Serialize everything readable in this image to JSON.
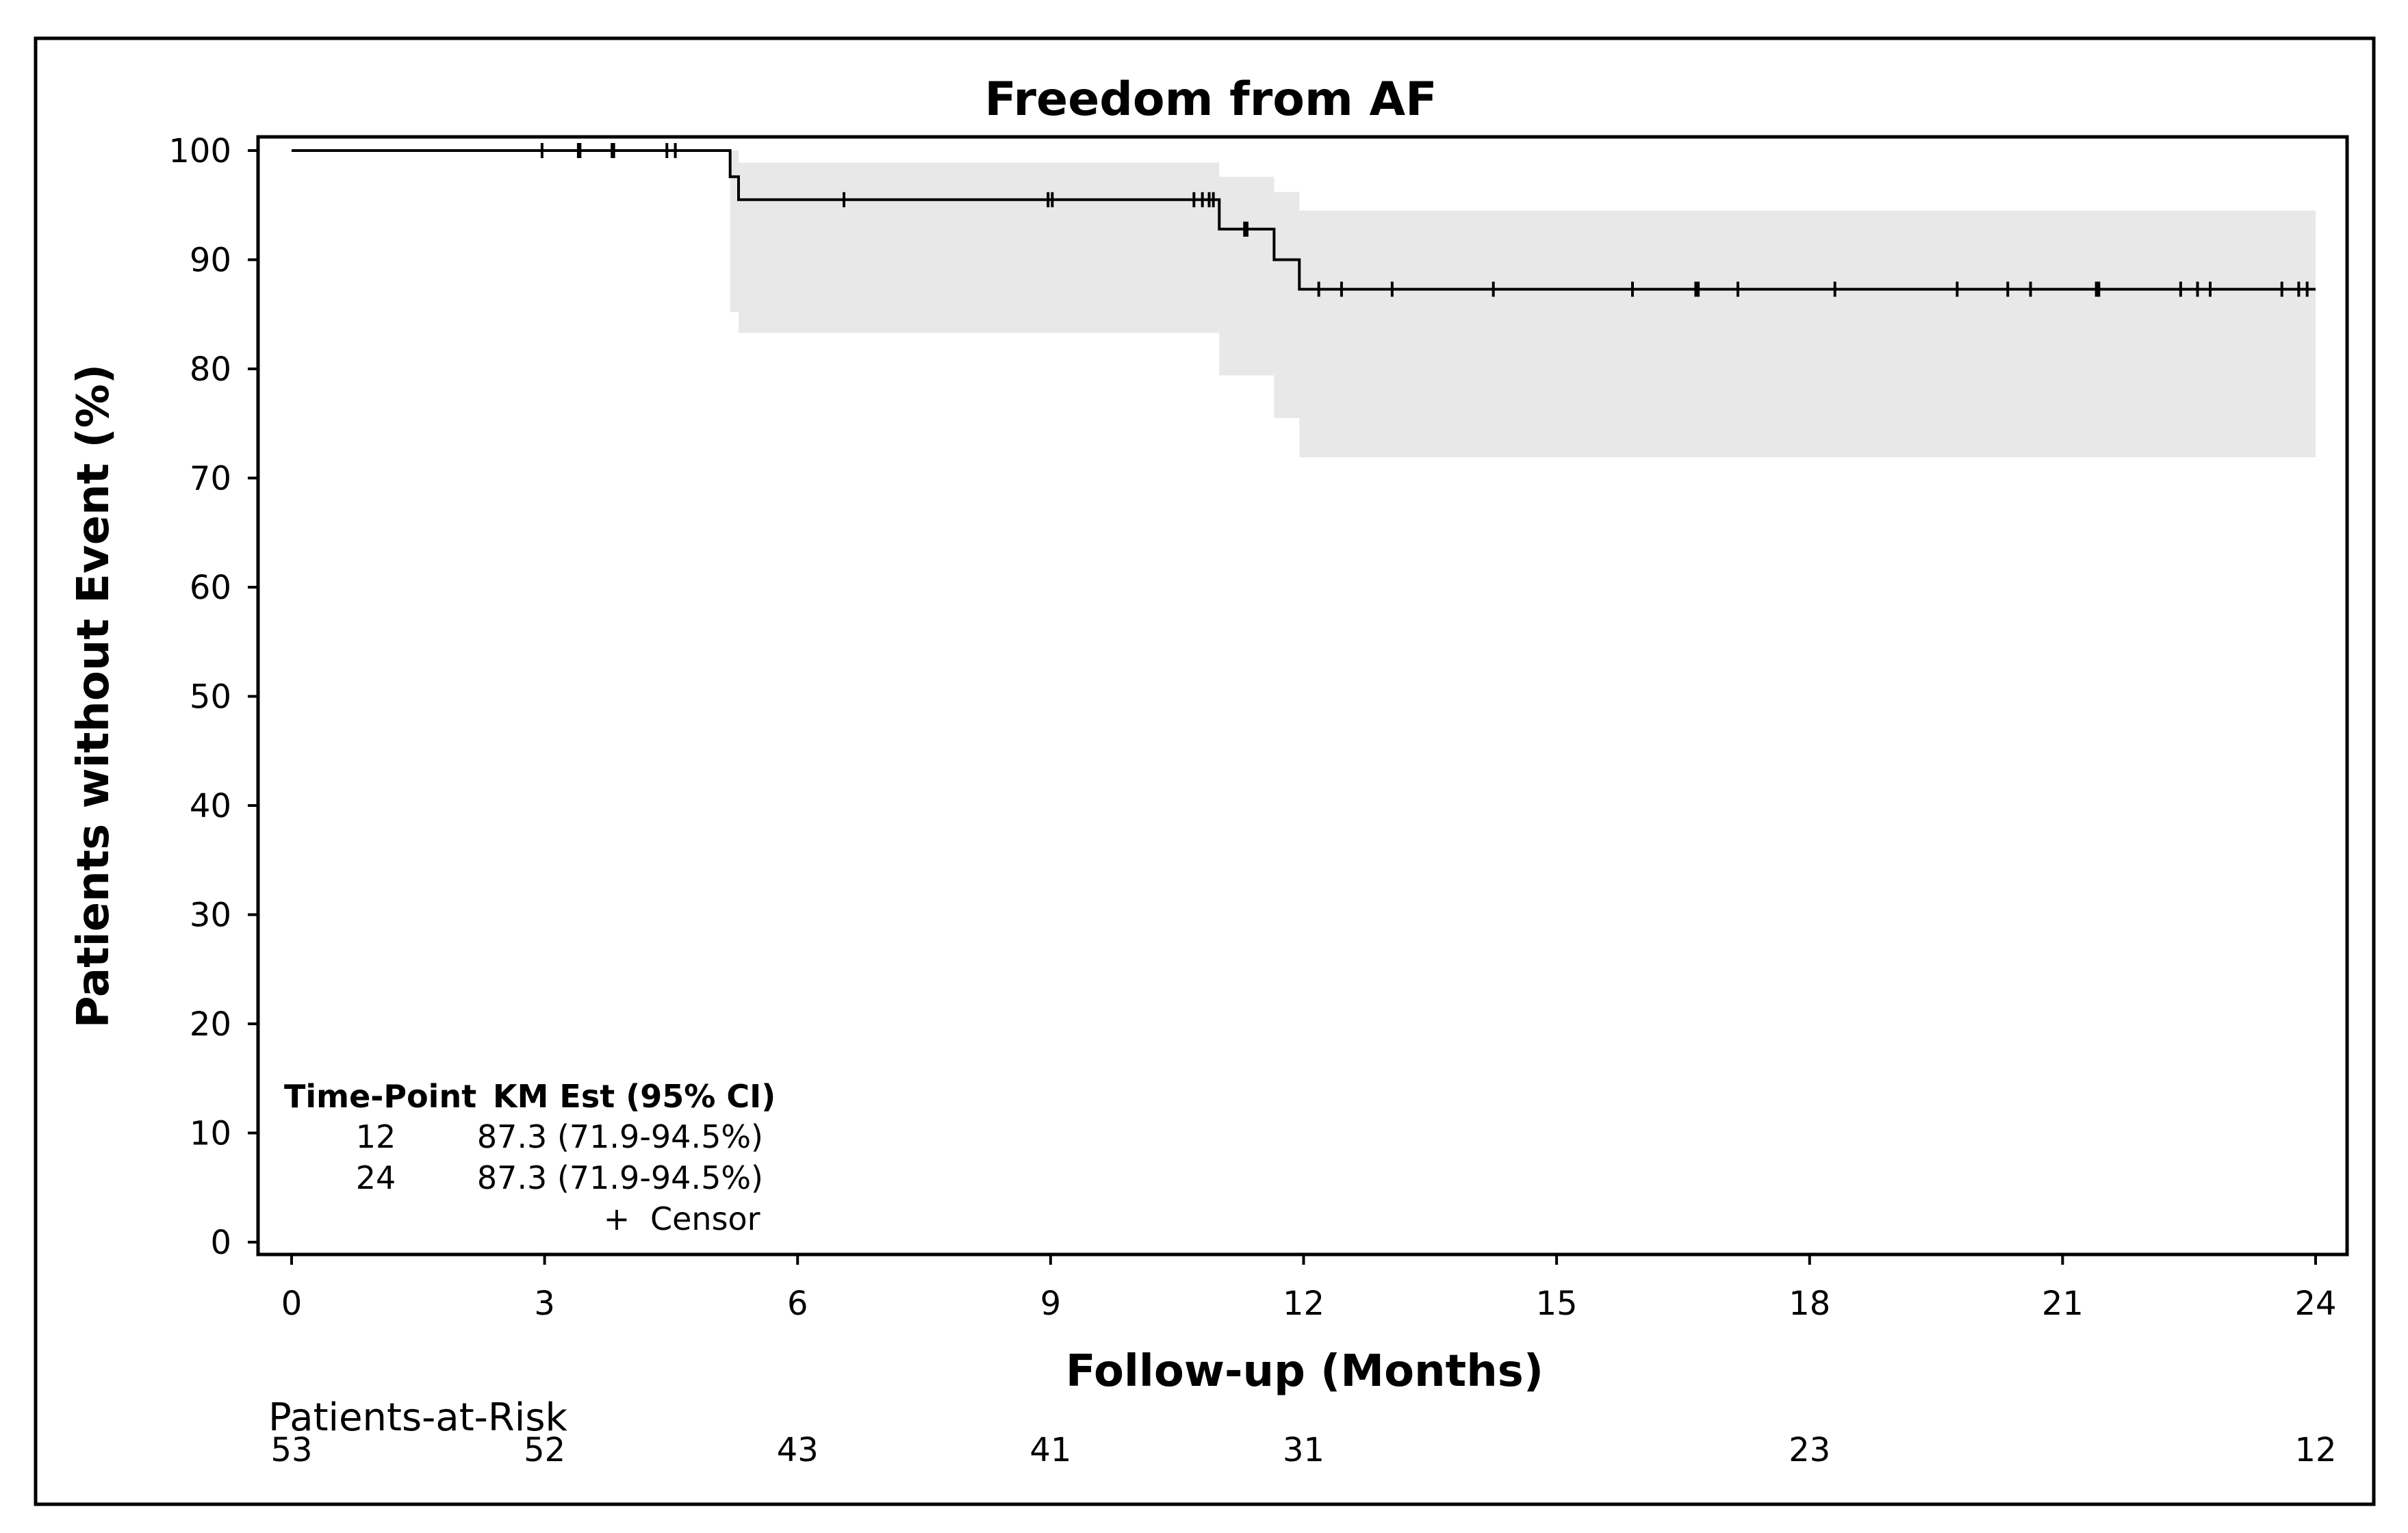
{
  "chart_data": {
    "type": "line",
    "subtype": "kaplan-meier",
    "title": "Freedom from AF",
    "xlabel": "Follow-up (Months)",
    "ylabel": "Patients without Event (%)",
    "xlim": [
      0,
      24
    ],
    "ylim": [
      0,
      100
    ],
    "x_ticks": [
      0,
      3,
      6,
      9,
      12,
      15,
      18,
      21,
      24
    ],
    "y_ticks": [
      0,
      10,
      20,
      30,
      40,
      50,
      60,
      70,
      80,
      90,
      100
    ],
    "grid": false,
    "series": [
      {
        "step_curve": [
          [
            0,
            100
          ],
          [
            5.2,
            100
          ],
          [
            5.2,
            97.6
          ],
          [
            5.3,
            97.6
          ],
          [
            5.3,
            95.5
          ],
          [
            11.0,
            95.5
          ],
          [
            11.0,
            92.8
          ],
          [
            11.65,
            92.8
          ],
          [
            11.65,
            90.0
          ],
          [
            11.95,
            90.0
          ],
          [
            11.95,
            87.3
          ],
          [
            24.0,
            87.3
          ]
        ],
        "ci_band": [
          {
            "x0": 5.2,
            "x1": 5.3,
            "upper": 100,
            "lower": 85.2
          },
          {
            "x0": 5.3,
            "x1": 11.0,
            "upper": 98.9,
            "lower": 83.3
          },
          {
            "x0": 11.0,
            "x1": 11.65,
            "upper": 97.6,
            "lower": 79.4
          },
          {
            "x0": 11.65,
            "x1": 11.95,
            "upper": 96.2,
            "lower": 75.5
          },
          {
            "x0": 11.95,
            "x1": 24.0,
            "upper": 94.5,
            "lower": 71.9
          }
        ],
        "censor_times": [
          2.97,
          3.4,
          3.42,
          3.8,
          3.82,
          4.45,
          4.55,
          6.55,
          8.97,
          9.02,
          10.7,
          10.8,
          10.88,
          10.93,
          11.3,
          11.33,
          12.18,
          12.45,
          13.05,
          14.25,
          15.9,
          16.65,
          16.68,
          17.15,
          18.3,
          19.75,
          20.35,
          20.62,
          21.4,
          21.43,
          22.4,
          22.6,
          22.75,
          23.6,
          23.8,
          23.9
        ]
      }
    ],
    "colors": {
      "line": "#000000",
      "ci_band": "#e8e8e8",
      "frame": "#000000"
    }
  },
  "inset": {
    "header_time": "Time-Point",
    "header_est": "KM Est (95% CI)",
    "rows": [
      {
        "time": "12",
        "est": "87.3 (71.9-94.5%)"
      },
      {
        "time": "24",
        "est": "87.3 (71.9-94.5%)"
      }
    ],
    "censor_symbol": "+",
    "censor_label": "Censor"
  },
  "risk_table": {
    "title": "Patients-at-Risk",
    "times": [
      0,
      3,
      6,
      9,
      12,
      18,
      24
    ],
    "counts": [
      "53",
      "52",
      "43",
      "41",
      "31",
      "23",
      "12"
    ]
  }
}
